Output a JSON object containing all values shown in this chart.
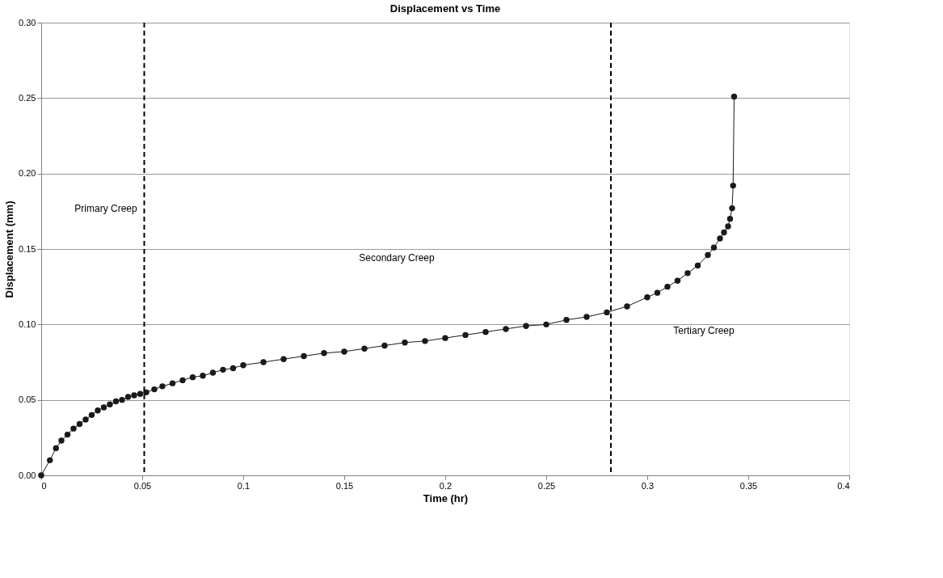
{
  "chart_data": {
    "type": "line",
    "title": "Displacement vs Time",
    "xlabel": "Time (hr)",
    "ylabel": "Displacement (mm)",
    "xlim": [
      0,
      0.4
    ],
    "xticks": [
      0,
      0.05,
      0.1,
      0.15,
      0.2,
      0.25,
      0.3,
      0.35,
      0.4
    ],
    "ylim": [
      0,
      0.3
    ],
    "yticks": [
      {
        "value": 0,
        "label": "0.00"
      },
      0.05,
      {
        "value": 0.1,
        "label": "0.10"
      },
      0.15,
      {
        "value": 0.2,
        "label": "0.20"
      },
      0.25,
      {
        "value": 0.3,
        "label": "0.30"
      }
    ],
    "grid": "y",
    "marker": "circle",
    "line_style": "solid",
    "x": [
      0,
      0.0043,
      0.0073,
      0.01,
      0.013,
      0.016,
      0.019,
      0.022,
      0.025,
      0.028,
      0.031,
      0.034,
      0.037,
      0.04,
      0.043,
      0.046,
      0.049,
      0.052,
      0.056,
      0.06,
      0.065,
      0.07,
      0.075,
      0.08,
      0.085,
      0.09,
      0.095,
      0.1,
      0.11,
      0.12,
      0.13,
      0.14,
      0.15,
      0.16,
      0.17,
      0.18,
      0.19,
      0.2,
      0.21,
      0.22,
      0.23,
      0.24,
      0.25,
      0.26,
      0.27,
      0.28,
      0.29,
      0.3,
      0.305,
      0.31,
      0.315,
      0.32,
      0.325,
      0.33,
      0.333,
      0.336,
      0.338,
      0.34,
      0.341,
      0.342,
      0.3425,
      0.343
    ],
    "series": [
      {
        "color": "#1a1a1a",
        "values": [
          0.0,
          0.01,
          0.018,
          0.023,
          0.027,
          0.031,
          0.034,
          0.037,
          0.04,
          0.043,
          0.045,
          0.047,
          0.049,
          0.05,
          0.052,
          0.053,
          0.054,
          0.055,
          0.057,
          0.059,
          0.061,
          0.063,
          0.065,
          0.066,
          0.068,
          0.07,
          0.071,
          0.073,
          0.075,
          0.077,
          0.079,
          0.081,
          0.082,
          0.084,
          0.086,
          0.088,
          0.089,
          0.091,
          0.093,
          0.095,
          0.097,
          0.099,
          0.1,
          0.103,
          0.105,
          0.108,
          0.112,
          0.118,
          0.121,
          0.125,
          0.129,
          0.134,
          0.139,
          0.146,
          0.151,
          0.157,
          0.161,
          0.165,
          0.17,
          0.177,
          0.192,
          0.251
        ]
      }
    ],
    "ref_lines": [
      {
        "axis": "x",
        "value": 0.051,
        "color": "#000000",
        "line_style": "dashed"
      },
      {
        "axis": "x",
        "value": 0.282,
        "color": "#000000",
        "line_style": "dashed"
      }
    ],
    "annotations": [
      "Primary Creep",
      "Secondary Creep",
      "Tertiary Creep"
    ]
  }
}
